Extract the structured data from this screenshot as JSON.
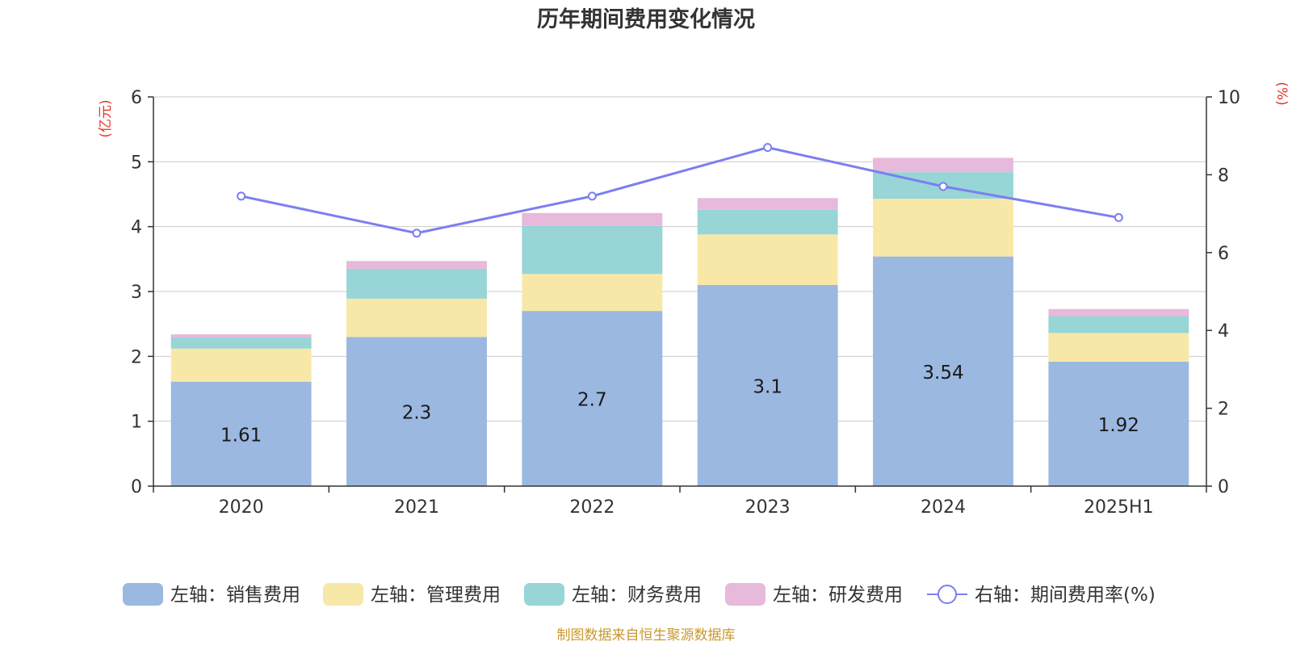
{
  "chart_data": {
    "type": "bar",
    "title": "历年期间费用变化情况",
    "left_axis_unit": "(亿元)",
    "right_axis_unit": "(%)",
    "categories": [
      "2020",
      "2021",
      "2022",
      "2023",
      "2024",
      "2025H1"
    ],
    "left_ylim": [
      0,
      6
    ],
    "left_yticks": [
      "0",
      "1",
      "2",
      "3",
      "4",
      "5",
      "6"
    ],
    "right_ylim": [
      0,
      10
    ],
    "right_yticks": [
      "0",
      "2",
      "4",
      "6",
      "8",
      "10"
    ],
    "stacked": true,
    "series": [
      {
        "name": "左轴：销售费用",
        "axis": "left",
        "kind": "bar",
        "color": "#9bb8e0",
        "values": [
          1.61,
          2.3,
          2.7,
          3.1,
          3.54,
          1.92
        ],
        "labels": [
          "1.61",
          "2.3",
          "2.7",
          "3.1",
          "3.54",
          "1.92"
        ]
      },
      {
        "name": "左轴：管理费用",
        "axis": "left",
        "kind": "bar",
        "color": "#f8e8a8",
        "values": [
          0.51,
          0.59,
          0.57,
          0.78,
          0.89,
          0.44
        ]
      },
      {
        "name": "左轴：财务费用",
        "axis": "left",
        "kind": "bar",
        "color": "#97d5d6",
        "values": [
          0.17,
          0.46,
          0.74,
          0.38,
          0.41,
          0.26
        ]
      },
      {
        "name": "左轴：研发费用",
        "axis": "left",
        "kind": "bar",
        "color": "#e7b9da",
        "values": [
          0.05,
          0.12,
          0.2,
          0.18,
          0.22,
          0.11
        ]
      },
      {
        "name": "右轴：期间费用率(%)",
        "axis": "right",
        "kind": "line",
        "color": "#7b7ff0",
        "values": [
          7.45,
          6.5,
          7.45,
          8.7,
          7.7,
          6.9
        ]
      }
    ],
    "grid": true,
    "legend_position": "bottom",
    "source": "制图数据来自恒生聚源数据库"
  },
  "colors": {
    "title": "#333333",
    "axis_unit": "#e8332a",
    "source": "#c9982e",
    "grid": "#cccccc",
    "axis": "#333333"
  }
}
